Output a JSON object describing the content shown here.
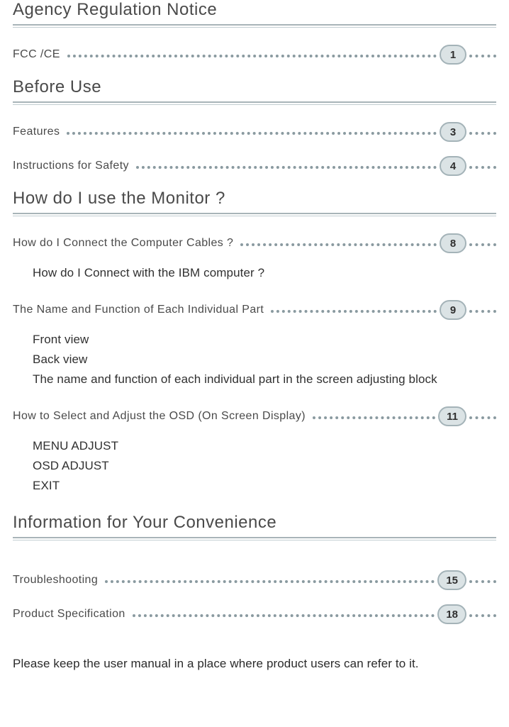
{
  "colors": {
    "page_bg": "#ffffff",
    "heading_text": "#4a4a4a",
    "rule_primary": "#a8b4b8",
    "rule_secondary": "#c2cdd1",
    "leader_dot": "#8a9aa0",
    "badge_bg": "#dbe3e5",
    "badge_border": "#a4b3b8",
    "badge_text": "#2f2f2f",
    "body_text": "#303030"
  },
  "typography": {
    "heading_font": "Verdana",
    "heading_size_pt": 18,
    "entry_font": "Verdana",
    "entry_size_pt": 12,
    "sub_font": "Arial",
    "sub_size_pt": 12
  },
  "sections": [
    {
      "title": "Agency Regulation Notice",
      "entries": [
        {
          "label": "FCC /CE",
          "page": "1",
          "subs": []
        }
      ]
    },
    {
      "title": "Before Use",
      "entries": [
        {
          "label": "Features",
          "page": "3",
          "subs": []
        },
        {
          "label": "Instructions for Safety",
          "page": "4",
          "subs": []
        }
      ]
    },
    {
      "title": "How do I use the Monitor ?",
      "entries": [
        {
          "label": "How do I Connect the Computer Cables ?",
          "page": "8",
          "subs": [
            "How  do I Connect with the IBM computer ?"
          ]
        },
        {
          "label": "The Name and Function of Each Individual Part",
          "page": "9",
          "subs": [
            "Front view",
            "Back view",
            "The name and function of each individual part in the screen adjusting block"
          ]
        },
        {
          "label": "How  to Select and Adjust the OSD (On Screen Display)",
          "page": "11",
          "subs": [
            "MENU ADJUST",
            "OSD ADJUST",
            "EXIT"
          ]
        }
      ]
    },
    {
      "title": "Information for Your Convenience",
      "entries": [
        {
          "label": "Troubleshooting",
          "page": "15",
          "subs": []
        },
        {
          "label": "Product Specification",
          "page": "18",
          "subs": []
        }
      ]
    }
  ],
  "footer_note": "Please keep the user manual in a place where product users can refer to it."
}
